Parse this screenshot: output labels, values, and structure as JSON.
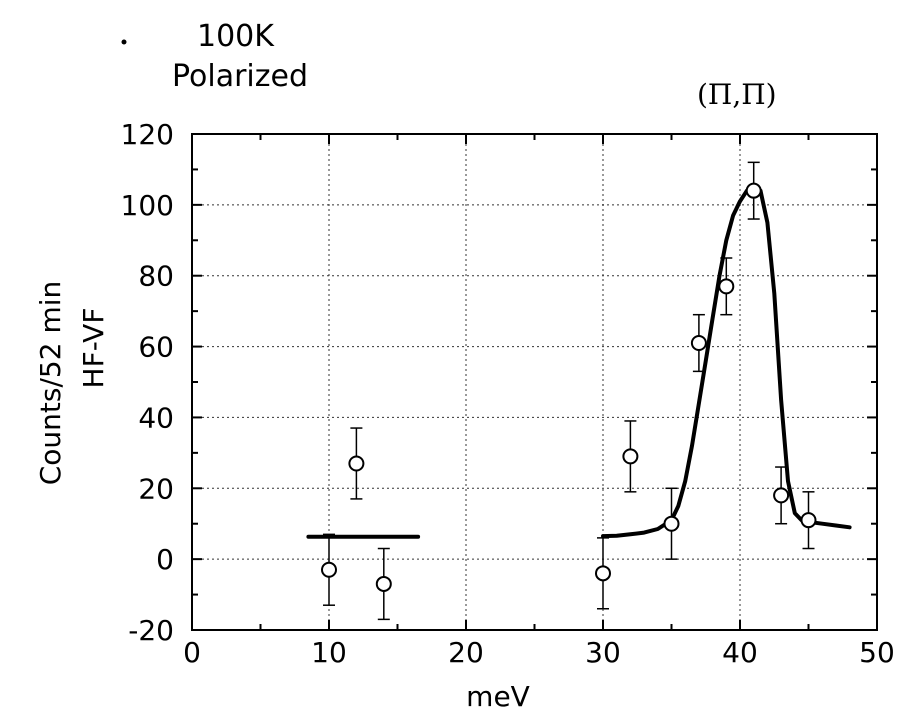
{
  "chart_data": {
    "type": "scatter",
    "title": "",
    "annotations": {
      "legend_line1": "100K",
      "legend_line2": "Polarized",
      "corner_label": "(Π,Π)"
    },
    "xlabel": "meV",
    "ylabel_line1": "Counts/52  min",
    "ylabel_line2": "HF-VF",
    "xlim": [
      0,
      50
    ],
    "ylim": [
      -20,
      120
    ],
    "xticks": [
      0,
      10,
      20,
      30,
      40,
      50
    ],
    "yticks": [
      -20,
      0,
      20,
      40,
      60,
      80,
      100,
      120
    ],
    "grid": true,
    "series": [
      {
        "kind": "points",
        "marker": "open-circle",
        "x": [
          10,
          12,
          14,
          30,
          32,
          35,
          37,
          39,
          41,
          43,
          45
        ],
        "y": [
          -3,
          27,
          -7,
          -4,
          29,
          10,
          61,
          77,
          104,
          18,
          11
        ],
        "yerr": [
          10,
          10,
          10,
          10,
          10,
          10,
          8,
          8,
          8,
          8,
          8
        ]
      },
      {
        "kind": "fit-line",
        "x": [
          8.5,
          16.5
        ],
        "y": [
          6.3,
          6.3
        ]
      },
      {
        "kind": "fit-line",
        "x": [
          30,
          31,
          32,
          33,
          34,
          35,
          35.5,
          36,
          36.5,
          37,
          37.5,
          38,
          38.5,
          39,
          39.5,
          40,
          40.5,
          41,
          41.5,
          42,
          42.5,
          43,
          43.5,
          44,
          44.5,
          45,
          46,
          47,
          48
        ],
        "y": [
          6.5,
          6.6,
          7,
          7.5,
          8.5,
          11,
          15,
          22,
          32,
          44,
          56,
          68,
          80,
          90,
          97,
          101,
          104,
          105,
          104,
          95,
          75,
          45,
          22,
          13,
          11,
          10.5,
          10,
          9.5,
          9
        ]
      }
    ]
  }
}
